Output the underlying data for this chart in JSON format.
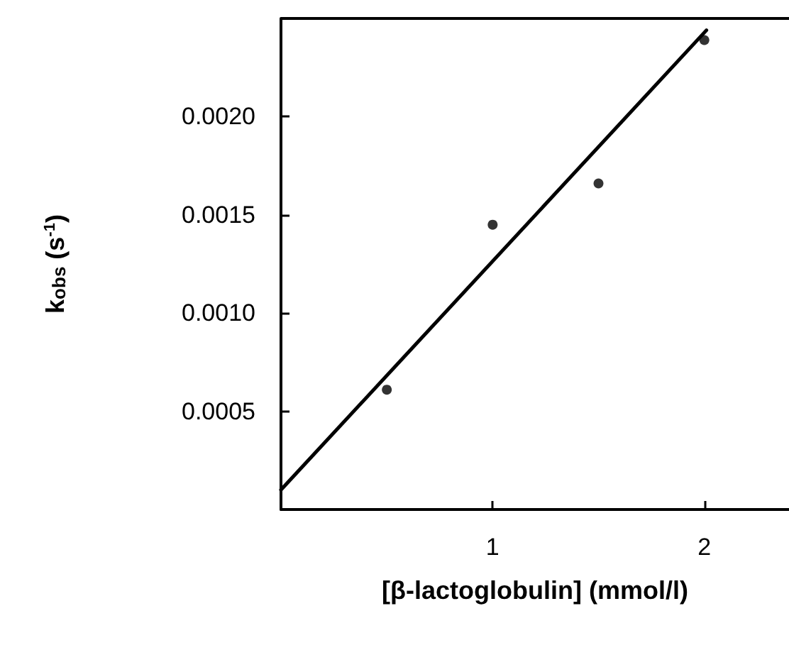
{
  "chart_data": {
    "type": "scatter",
    "xlabel": "[β-lactoglobulin] (mmol/l)",
    "ylabel": "k$_{obs}$ (s$^{-1}$)",
    "xlim": [
      0,
      2.4
    ],
    "xticks": [
      1,
      2
    ],
    "ylim": [
      0,
      0.0025
    ],
    "yticks": [
      0.0005,
      {
        "value": 0.001,
        "label": "0.0010"
      },
      0.0015,
      {
        "value": 0.002,
        "label": "0.0020"
      }
    ],
    "grid": false,
    "marker": "circle",
    "series": [
      {
        "color": "#000000",
        "x": [
          0.5,
          1,
          1.5,
          2
        ],
        "values": [
          0.00061,
          0.00145,
          0.00166,
          0.00239
        ]
      },
      {
        "type": "line",
        "color": "#000000",
        "marker": "none",
        "line_style": "solid",
        "x": [
          0,
          2.01
        ],
        "values": [
          0.0001,
          0.00244
        ]
      }
    ]
  }
}
